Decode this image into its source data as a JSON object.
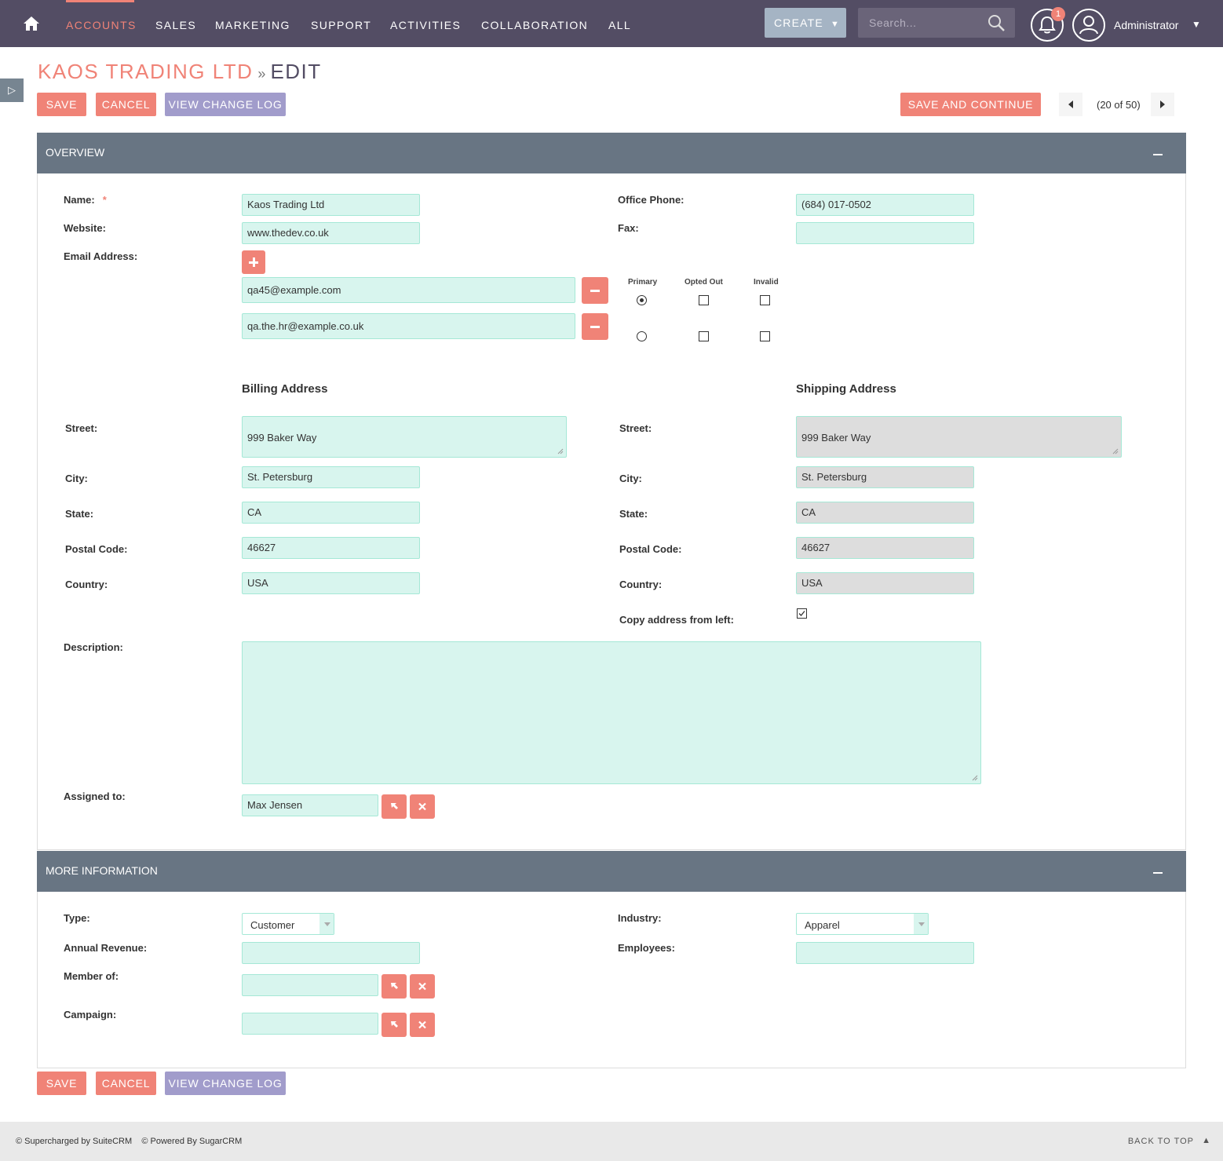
{
  "nav": {
    "items": [
      "ACCOUNTS",
      "SALES",
      "MARKETING",
      "SUPPORT",
      "ACTIVITIES",
      "COLLABORATION",
      "ALL"
    ],
    "create_label": "CREATE",
    "search_placeholder": "Search...",
    "notification_count": "1",
    "user": "Administrator"
  },
  "header": {
    "module": "KAOS TRADING LTD",
    "separator": "»",
    "mode": "EDIT"
  },
  "buttons": {
    "save": "SAVE",
    "cancel": "CANCEL",
    "change_log": "VIEW CHANGE LOG",
    "save_continue": "SAVE AND CONTINUE"
  },
  "pager": {
    "text": "(20 of 50)"
  },
  "overview": {
    "title": "OVERVIEW",
    "name_label": "Name:",
    "name_required": "*",
    "name_value": "Kaos Trading Ltd",
    "website_label": "Website:",
    "website_value": "www.thedev.co.uk",
    "email_label": "Email Address:",
    "office_phone_label": "Office Phone:",
    "office_phone_value": "(684) 017-0502",
    "fax_label": "Fax:",
    "fax_value": "",
    "email_headers": {
      "primary": "Primary",
      "opted_out": "Opted Out",
      "invalid": "Invalid"
    },
    "emails": [
      {
        "value": "qa45@example.com",
        "primary": true,
        "opted_out": false,
        "invalid": false
      },
      {
        "value": "qa.the.hr@example.co.uk",
        "primary": false,
        "opted_out": false,
        "invalid": false
      }
    ],
    "billing": {
      "title": "Billing Address",
      "street_label": "Street:",
      "street": "999 Baker Way",
      "city_label": "City:",
      "city": "St. Petersburg",
      "state_label": "State:",
      "state": "CA",
      "postal_label": "Postal Code:",
      "postal": "46627",
      "country_label": "Country:",
      "country": "USA"
    },
    "shipping": {
      "title": "Shipping Address",
      "street_label": "Street:",
      "street": "999 Baker Way",
      "city_label": "City:",
      "city": "St. Petersburg",
      "state_label": "State:",
      "state": "CA",
      "postal_label": "Postal Code:",
      "postal": "46627",
      "country_label": "Country:",
      "country": "USA",
      "copy_label": "Copy address from left:",
      "copy_checked": true
    },
    "description_label": "Description:",
    "description_value": "",
    "assigned_label": "Assigned to:",
    "assigned_value": "Max Jensen"
  },
  "more_info": {
    "title": "MORE INFORMATION",
    "type_label": "Type:",
    "type_value": "Customer",
    "industry_label": "Industry:",
    "industry_value": "Apparel",
    "annual_revenue_label": "Annual Revenue:",
    "annual_revenue_value": "",
    "employees_label": "Employees:",
    "employees_value": "",
    "member_of_label": "Member of:",
    "member_of_value": "",
    "campaign_label": "Campaign:",
    "campaign_value": ""
  },
  "footer": {
    "supercharged": "© Supercharged by SuiteCRM",
    "powered": "© Powered By SugarCRM",
    "back_to_top": "BACK TO TOP"
  },
  "colors": {
    "nav_bg": "#534d64",
    "accent": "#f08377",
    "panel_header": "#687583",
    "input_bg": "#d8f5ee",
    "button_purple": "#a19ccb"
  }
}
